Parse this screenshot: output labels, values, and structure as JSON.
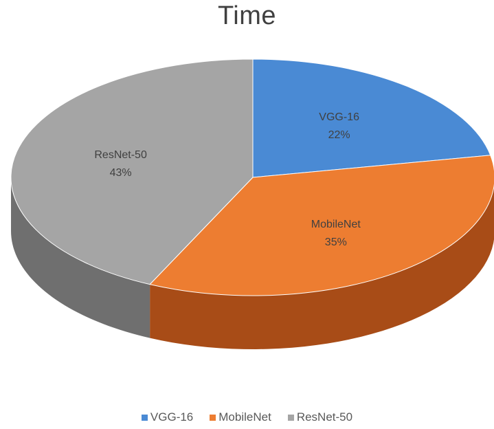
{
  "chart_data": {
    "type": "pie",
    "title": "Time",
    "categories": [
      "VGG-16",
      "MobileNet",
      "ResNet-50"
    ],
    "values": [
      22,
      35,
      43
    ],
    "unit": "%",
    "data_labels": [
      {
        "name": "VGG-16",
        "pct": "22%"
      },
      {
        "name": "MobileNet",
        "pct": "35%"
      },
      {
        "name": "ResNet-50",
        "pct": "43%"
      }
    ],
    "colors": [
      "#4a8ad4",
      "#ed7d31",
      "#a5a5a5"
    ],
    "side_colors": [
      "#2e5f95",
      "#a84c17",
      "#6f6f6f"
    ],
    "style": "3d-pie",
    "legend_position": "bottom"
  }
}
